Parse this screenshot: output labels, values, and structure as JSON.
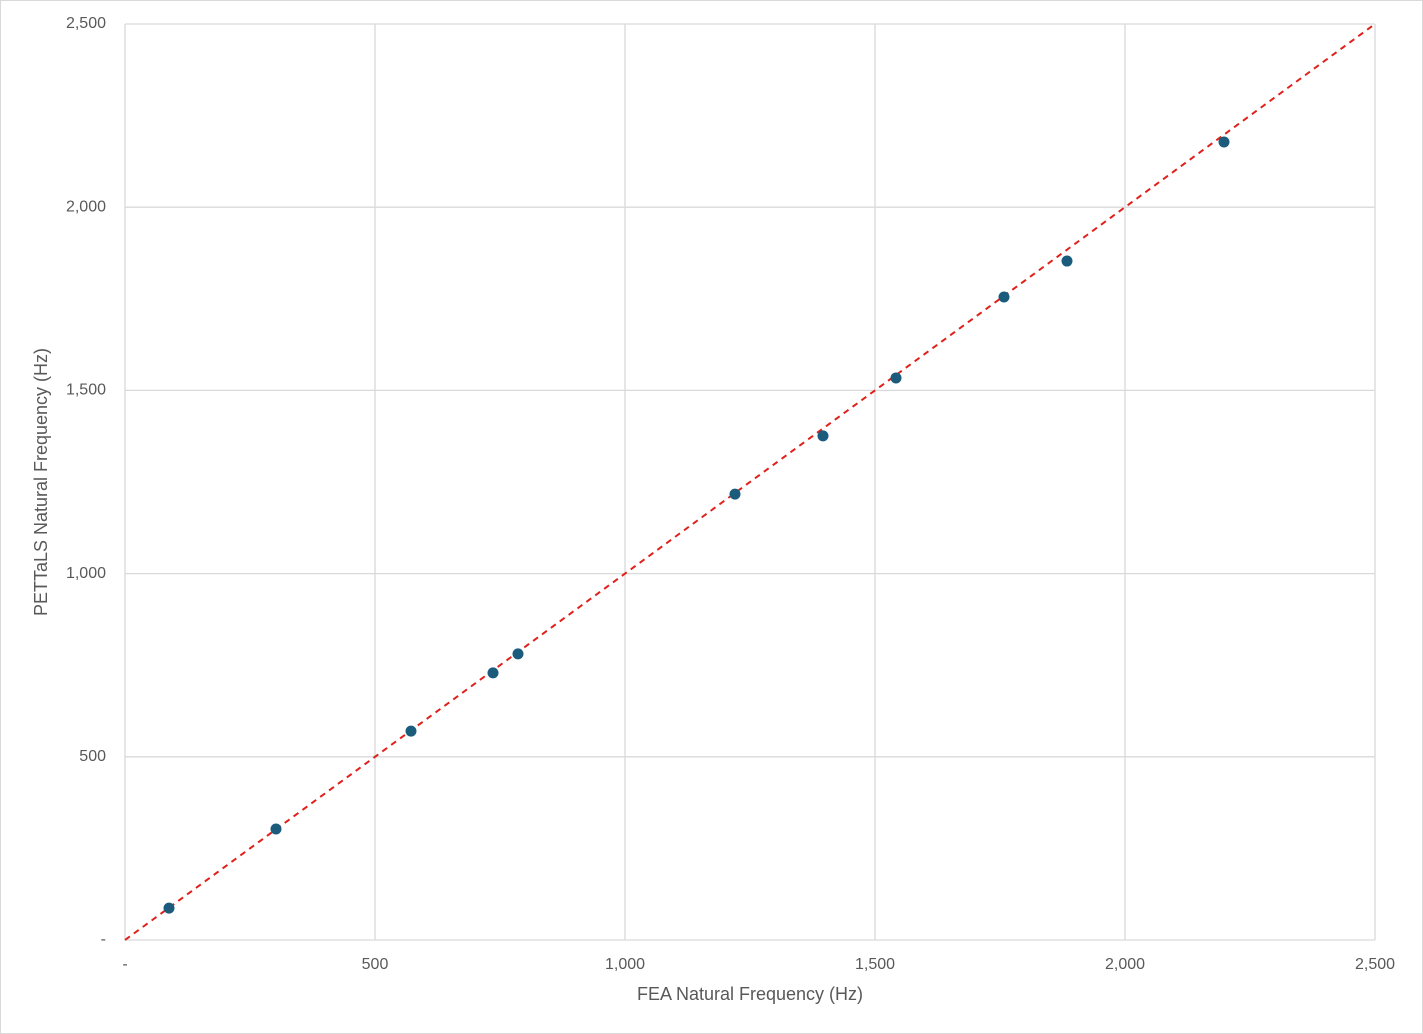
{
  "chart_data": {
    "type": "scatter",
    "x_label": "FEA Natural Frequency (Hz)",
    "y_label": "PETTaLS Natural Frequency (Hz)",
    "x": [
      88,
      302,
      572,
      736,
      786,
      1220,
      1396,
      1542,
      1758,
      1884,
      2198
    ],
    "y": [
      87,
      303,
      570,
      729,
      781,
      1217,
      1376,
      1534,
      1755,
      1853,
      2178
    ],
    "color": "#1b5c7c",
    "xlim": [
      0,
      2500
    ],
    "ylim": [
      0,
      2500
    ],
    "xticks": [
      {
        "value": 0,
        "label": "-"
      },
      500,
      {
        "value": 1000,
        "label": "1,000"
      },
      {
        "value": 1500,
        "label": "1,500"
      },
      {
        "value": 2000,
        "label": "2,000"
      },
      {
        "value": 2500,
        "label": "2,500"
      }
    ],
    "yticks": [
      {
        "value": 0,
        "label": "-"
      },
      500,
      {
        "value": 1000,
        "label": "1,000"
      },
      {
        "value": 1500,
        "label": "1,500"
      },
      {
        "value": 2000,
        "label": "2,000"
      },
      {
        "value": 2500,
        "label": "2,500"
      }
    ],
    "grid": true,
    "reference_line": {
      "x": [
        0,
        2500
      ],
      "y": [
        0,
        2500
      ],
      "color": "#e0201b"
    }
  }
}
